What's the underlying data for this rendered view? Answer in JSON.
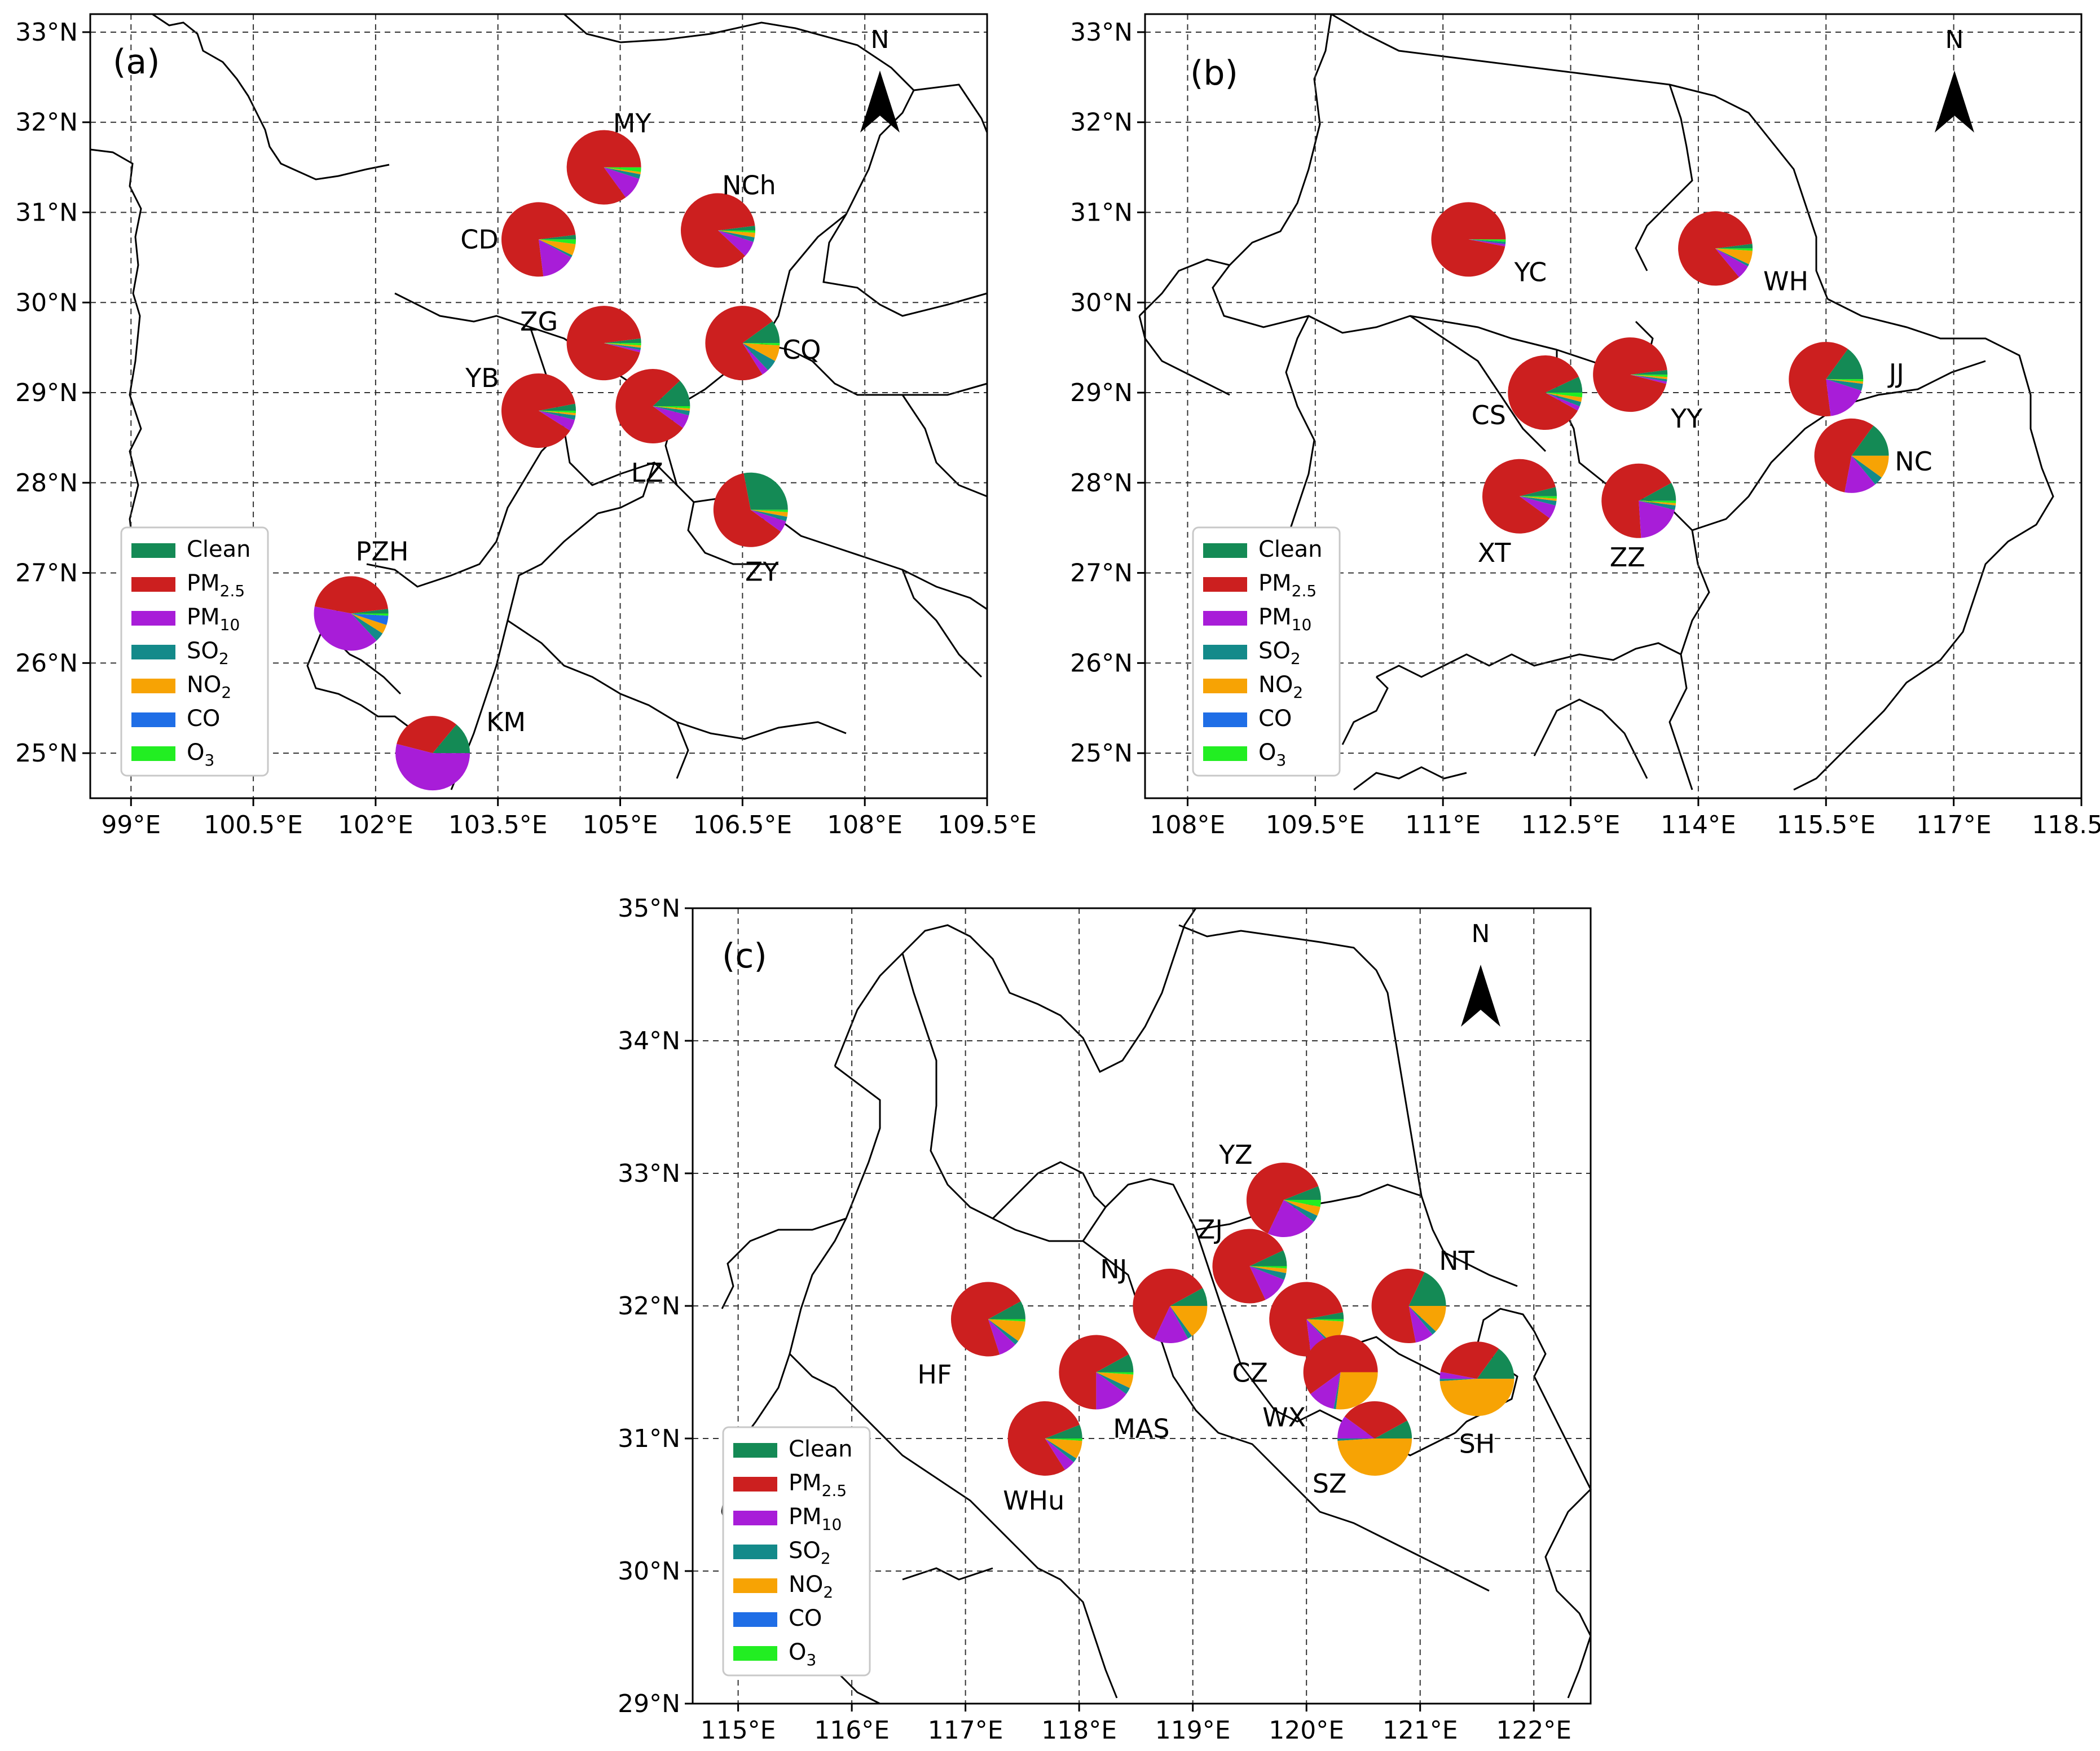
{
  "colors": {
    "Clean": "#148a55",
    "PM2.5": "#cc1f1f",
    "PM10": "#a81dd8",
    "SO2": "#138a8a",
    "NO2": "#f7a304",
    "CO": "#1f6ee6",
    "O3": "#22ee22"
  },
  "legend": [
    {
      "key": "Clean",
      "label": "Clean",
      "sub": ""
    },
    {
      "key": "PM2.5",
      "label": "PM",
      "sub": "2.5"
    },
    {
      "key": "PM10",
      "label": "PM",
      "sub": "10"
    },
    {
      "key": "SO2",
      "label": "SO",
      "sub": "2"
    },
    {
      "key": "NO2",
      "label": "NO",
      "sub": "2"
    },
    {
      "key": "CO",
      "label": "CO",
      "sub": ""
    },
    {
      "key": "O3",
      "label": "O",
      "sub": "3"
    }
  ],
  "north_label": "N",
  "chart_data": [
    {
      "type": "pie-map",
      "panel": "(a)",
      "lon_range": [
        98.5,
        109.5
      ],
      "lat_range": [
        24.5,
        33.2
      ],
      "xticks": [
        {
          "value": 99,
          "label": "99°E"
        },
        {
          "value": 100.5,
          "label": "100.5°E"
        },
        {
          "value": 102,
          "label": "102°E"
        },
        {
          "value": 103.5,
          "label": "103.5°E"
        },
        {
          "value": 105,
          "label": "105°E"
        },
        {
          "value": 106.5,
          "label": "106.5°E"
        },
        {
          "value": 108,
          "label": "108°E"
        },
        {
          "value": 109.5,
          "label": "109.5°E"
        }
      ],
      "yticks": [
        {
          "value": 25,
          "label": "25°N"
        },
        {
          "value": 26,
          "label": "26°N"
        },
        {
          "value": 27,
          "label": "27°N"
        },
        {
          "value": 28,
          "label": "28°N"
        },
        {
          "value": 29,
          "label": "29°N"
        },
        {
          "value": 30,
          "label": "30°N"
        },
        {
          "value": 31,
          "label": "31°N"
        },
        {
          "value": 32,
          "label": "32°N"
        },
        {
          "value": 33,
          "label": "33°N"
        }
      ],
      "cities": [
        {
          "name": "MY",
          "lon": 104.8,
          "lat": 31.5,
          "label_dx": 50,
          "label_dy": -78,
          "shares": {
            "PM2.5": 85,
            "PM10": 10,
            "SO2": 2,
            "NO2": 1,
            "O3": 2,
            "Clean": 0,
            "CO": 0
          }
        },
        {
          "name": "NCh",
          "lon": 106.2,
          "lat": 30.8,
          "label_dx": 55,
          "label_dy": -80,
          "shares": {
            "PM2.5": 86,
            "PM10": 7,
            "SO2": 2,
            "NO2": 2,
            "O3": 1,
            "Clean": 2,
            "CO": 0
          }
        },
        {
          "name": "CD",
          "lon": 104.0,
          "lat": 30.7,
          "label_dx": -105,
          "label_dy": 0,
          "shares": {
            "Clean": 2,
            "PM2.5": 75,
            "PM10": 15,
            "SO2": 1,
            "NO2": 5,
            "O3": 2,
            "CO": 0
          }
        },
        {
          "name": "ZG",
          "lon": 104.8,
          "lat": 29.55,
          "label_dx": -115,
          "label_dy": -38,
          "shares": {
            "Clean": 2,
            "PM2.5": 94,
            "PM10": 1,
            "SO2": 1,
            "NO2": 1,
            "O3": 1,
            "CO": 0
          }
        },
        {
          "name": "CQ",
          "lon": 106.5,
          "lat": 29.55,
          "label_dx": 105,
          "label_dy": 12,
          "shares": {
            "Clean": 10,
            "PM2.5": 74,
            "PM10": 3,
            "SO2": 5,
            "NO2": 7,
            "O3": 1,
            "CO": 0
          }
        },
        {
          "name": "YB",
          "lon": 104.0,
          "lat": 28.8,
          "label_dx": -100,
          "label_dy": -58,
          "shares": {
            "Clean": 3,
            "PM2.5": 88,
            "PM10": 5,
            "SO2": 2,
            "NO2": 1,
            "O3": 1,
            "CO": 0
          }
        },
        {
          "name": "LZ",
          "lon": 105.4,
          "lat": 28.85,
          "label_dx": -10,
          "label_dy": 118,
          "shares": {
            "Clean": 12,
            "PM2.5": 78,
            "PM10": 6,
            "SO2": 2,
            "NO2": 1,
            "O3": 1,
            "CO": 0
          }
        },
        {
          "name": "ZY",
          "lon": 106.6,
          "lat": 27.7,
          "label_dx": 20,
          "label_dy": 110,
          "shares": {
            "Clean": 28,
            "PM2.5": 62,
            "PM10": 5,
            "SO2": 2,
            "NO2": 2,
            "O3": 1,
            "CO": 0
          }
        },
        {
          "name": "PZH",
          "lon": 101.7,
          "lat": 26.55,
          "label_dx": 55,
          "label_dy": -110,
          "shares": {
            "Clean": 2,
            "PM2.5": 45,
            "PM10": 40,
            "SO2": 4,
            "NO2": 4,
            "CO": 4,
            "O3": 1
          }
        },
        {
          "name": "KM",
          "lon": 102.7,
          "lat": 25.0,
          "label_dx": 130,
          "label_dy": -55,
          "shares": {
            "Clean": 14,
            "PM2.5": 32,
            "PM10": 54,
            "SO2": 0,
            "NO2": 0,
            "CO": 0,
            "O3": 0
          }
        }
      ]
    },
    {
      "type": "pie-map",
      "panel": "(b)",
      "lon_range": [
        107.5,
        118.5
      ],
      "lat_range": [
        24.5,
        33.2
      ],
      "xticks": [
        {
          "value": 108,
          "label": "108°E"
        },
        {
          "value": 109.5,
          "label": "109.5°E"
        },
        {
          "value": 111,
          "label": "111°E"
        },
        {
          "value": 112.5,
          "label": "112.5°E"
        },
        {
          "value": 114,
          "label": "114°E"
        },
        {
          "value": 115.5,
          "label": "115.5°E"
        },
        {
          "value": 117,
          "label": "117°E"
        },
        {
          "value": 118.5,
          "label": "118.5°E"
        }
      ],
      "yticks": [
        {
          "value": 25,
          "label": "25°N"
        },
        {
          "value": 26,
          "label": "26°N"
        },
        {
          "value": 27,
          "label": "27°N"
        },
        {
          "value": 28,
          "label": "28°N"
        },
        {
          "value": 29,
          "label": "29°N"
        },
        {
          "value": 30,
          "label": "30°N"
        },
        {
          "value": 31,
          "label": "31°N"
        },
        {
          "value": 32,
          "label": "32°N"
        },
        {
          "value": 33,
          "label": "33°N"
        }
      ],
      "cities": [
        {
          "name": "YC",
          "lon": 111.3,
          "lat": 30.7,
          "label_dx": 110,
          "label_dy": 58,
          "shares": {
            "PM2.5": 97,
            "PM10": 1,
            "SO2": 1,
            "O3": 1,
            "Clean": 0,
            "NO2": 0,
            "CO": 0
          }
        },
        {
          "name": "WH",
          "lon": 114.2,
          "lat": 30.6,
          "label_dx": 125,
          "label_dy": 58,
          "shares": {
            "Clean": 2,
            "PM2.5": 84,
            "PM10": 6,
            "SO2": 1,
            "NO2": 6,
            "O3": 1,
            "CO": 0
          }
        },
        {
          "name": "CS",
          "lon": 112.2,
          "lat": 29.0,
          "label_dx": -100,
          "label_dy": 40,
          "shares": {
            "Clean": 7,
            "PM2.5": 85,
            "PM10": 2,
            "SO2": 2,
            "NO2": 2,
            "O3": 2,
            "CO": 0
          }
        },
        {
          "name": "YY",
          "lon": 113.2,
          "lat": 29.2,
          "label_dx": 100,
          "label_dy": 78,
          "shares": {
            "Clean": 2,
            "PM2.5": 94,
            "PM10": 1,
            "SO2": 1,
            "NO2": 1,
            "O3": 1,
            "CO": 0
          }
        },
        {
          "name": "JJ",
          "lon": 115.5,
          "lat": 29.15,
          "label_dx": 125,
          "label_dy": -10,
          "shares": {
            "Clean": 15,
            "PM2.5": 62,
            "PM10": 18,
            "SO2": 3,
            "NO2": 1,
            "O3": 1,
            "CO": 0
          }
        },
        {
          "name": "NC",
          "lon": 115.8,
          "lat": 28.3,
          "label_dx": 110,
          "label_dy": 10,
          "shares": {
            "Clean": 15,
            "PM2.5": 57,
            "PM10": 14,
            "SO2": 4,
            "NO2": 10,
            "CO": 0,
            "O3": 0
          }
        },
        {
          "name": "XT",
          "lon": 111.9,
          "lat": 27.85,
          "label_dx": -45,
          "label_dy": 100,
          "shares": {
            "Clean": 4,
            "PM2.5": 86,
            "PM10": 6,
            "SO2": 2,
            "NO2": 1,
            "O3": 1,
            "CO": 0
          }
        },
        {
          "name": "ZZ",
          "lon": 113.3,
          "lat": 27.8,
          "label_dx": -20,
          "label_dy": 100,
          "shares": {
            "Clean": 8,
            "PM2.5": 68,
            "PM10": 20,
            "SO2": 2,
            "NO2": 1,
            "O3": 1,
            "CO": 0
          }
        }
      ]
    },
    {
      "type": "pie-map",
      "panel": "(c)",
      "lon_range": [
        114.6,
        122.5
      ],
      "lat_range": [
        29.0,
        35.0
      ],
      "xticks": [
        {
          "value": 115,
          "label": "115°E"
        },
        {
          "value": 116,
          "label": "116°E"
        },
        {
          "value": 117,
          "label": "117°E"
        },
        {
          "value": 118,
          "label": "118°E"
        },
        {
          "value": 119,
          "label": "119°E"
        },
        {
          "value": 120,
          "label": "120°E"
        },
        {
          "value": 121,
          "label": "121°E"
        },
        {
          "value": 122,
          "label": "122°E"
        }
      ],
      "yticks": [
        {
          "value": 29,
          "label": "29°N"
        },
        {
          "value": 30,
          "label": "30°N"
        },
        {
          "value": 31,
          "label": "31°N"
        },
        {
          "value": 32,
          "label": "32°N"
        },
        {
          "value": 33,
          "label": "33°N"
        },
        {
          "value": 34,
          "label": "34°N"
        },
        {
          "value": 35,
          "label": "35°N"
        }
      ],
      "cities": [
        {
          "name": "YZ",
          "lon": 119.8,
          "lat": 32.8,
          "label_dx": -85,
          "label_dy": -80,
          "shares": {
            "Clean": 6,
            "PM2.5": 62,
            "PM10": 22,
            "SO2": 3,
            "NO2": 4,
            "O3": 3,
            "CO": 0
          }
        },
        {
          "name": "ZJ",
          "lon": 119.5,
          "lat": 32.3,
          "label_dx": -70,
          "label_dy": -65,
          "shares": {
            "Clean": 7,
            "PM2.5": 75,
            "PM10": 12,
            "SO2": 3,
            "NO2": 2,
            "O3": 1,
            "CO": 0
          }
        },
        {
          "name": "NJ",
          "lon": 118.8,
          "lat": 32.0,
          "label_dx": -100,
          "label_dy": -65,
          "shares": {
            "Clean": 8,
            "PM2.5": 60,
            "PM10": 15,
            "SO2": 2,
            "NO2": 15,
            "O3": 0,
            "CO": 0
          }
        },
        {
          "name": "NT",
          "lon": 120.9,
          "lat": 32.0,
          "label_dx": 85,
          "label_dy": -80,
          "shares": {
            "Clean": 18,
            "PM2.5": 60,
            "PM10": 8,
            "SO2": 2,
            "NO2": 12,
            "O3": 0,
            "CO": 0
          }
        },
        {
          "name": "HF",
          "lon": 117.2,
          "lat": 31.9,
          "label_dx": -95,
          "label_dy": 98,
          "shares": {
            "Clean": 8,
            "PM2.5": 72,
            "PM10": 8,
            "SO2": 2,
            "NO2": 9,
            "O3": 1,
            "CO": 0
          }
        },
        {
          "name": "CZ",
          "lon": 120.0,
          "lat": 31.9,
          "label_dx": -100,
          "label_dy": 95,
          "shares": {
            "Clean": 3,
            "PM2.5": 74,
            "PM10": 10,
            "SO2": 1,
            "NO2": 11,
            "O3": 1,
            "CO": 0
          }
        },
        {
          "name": "MAS",
          "lon": 118.15,
          "lat": 31.5,
          "label_dx": 80,
          "label_dy": 100,
          "shares": {
            "Clean": 8,
            "PM2.5": 67,
            "PM10": 15,
            "SO2": 3,
            "NO2": 6,
            "O3": 1,
            "CO": 0
          }
        },
        {
          "name": "WX",
          "lon": 120.3,
          "lat": 31.5,
          "label_dx": -100,
          "label_dy": 80,
          "shares": {
            "PM2.5": 60,
            "PM10": 12,
            "SO2": 1,
            "NO2": 27,
            "Clean": 0,
            "CO": 0,
            "O3": 0
          }
        },
        {
          "name": "SH",
          "lon": 121.5,
          "lat": 31.45,
          "label_dx": 0,
          "label_dy": 115,
          "shares": {
            "Clean": 15,
            "PM2.5": 32,
            "PM10": 3,
            "SO2": 1,
            "NO2": 49,
            "CO": 0,
            "O3": 0
          }
        },
        {
          "name": "WHu",
          "lon": 117.7,
          "lat": 31.0,
          "label_dx": -20,
          "label_dy": 110,
          "shares": {
            "Clean": 6,
            "PM2.5": 78,
            "PM10": 5,
            "SO2": 2,
            "NO2": 8,
            "O3": 1,
            "CO": 0
          }
        },
        {
          "name": "SZ",
          "lon": 120.6,
          "lat": 31.0,
          "label_dx": -80,
          "label_dy": 80,
          "shares": {
            "Clean": 8,
            "PM2.5": 32,
            "PM10": 10,
            "SO2": 1,
            "NO2": 49,
            "CO": 0,
            "O3": 0
          }
        }
      ]
    }
  ]
}
